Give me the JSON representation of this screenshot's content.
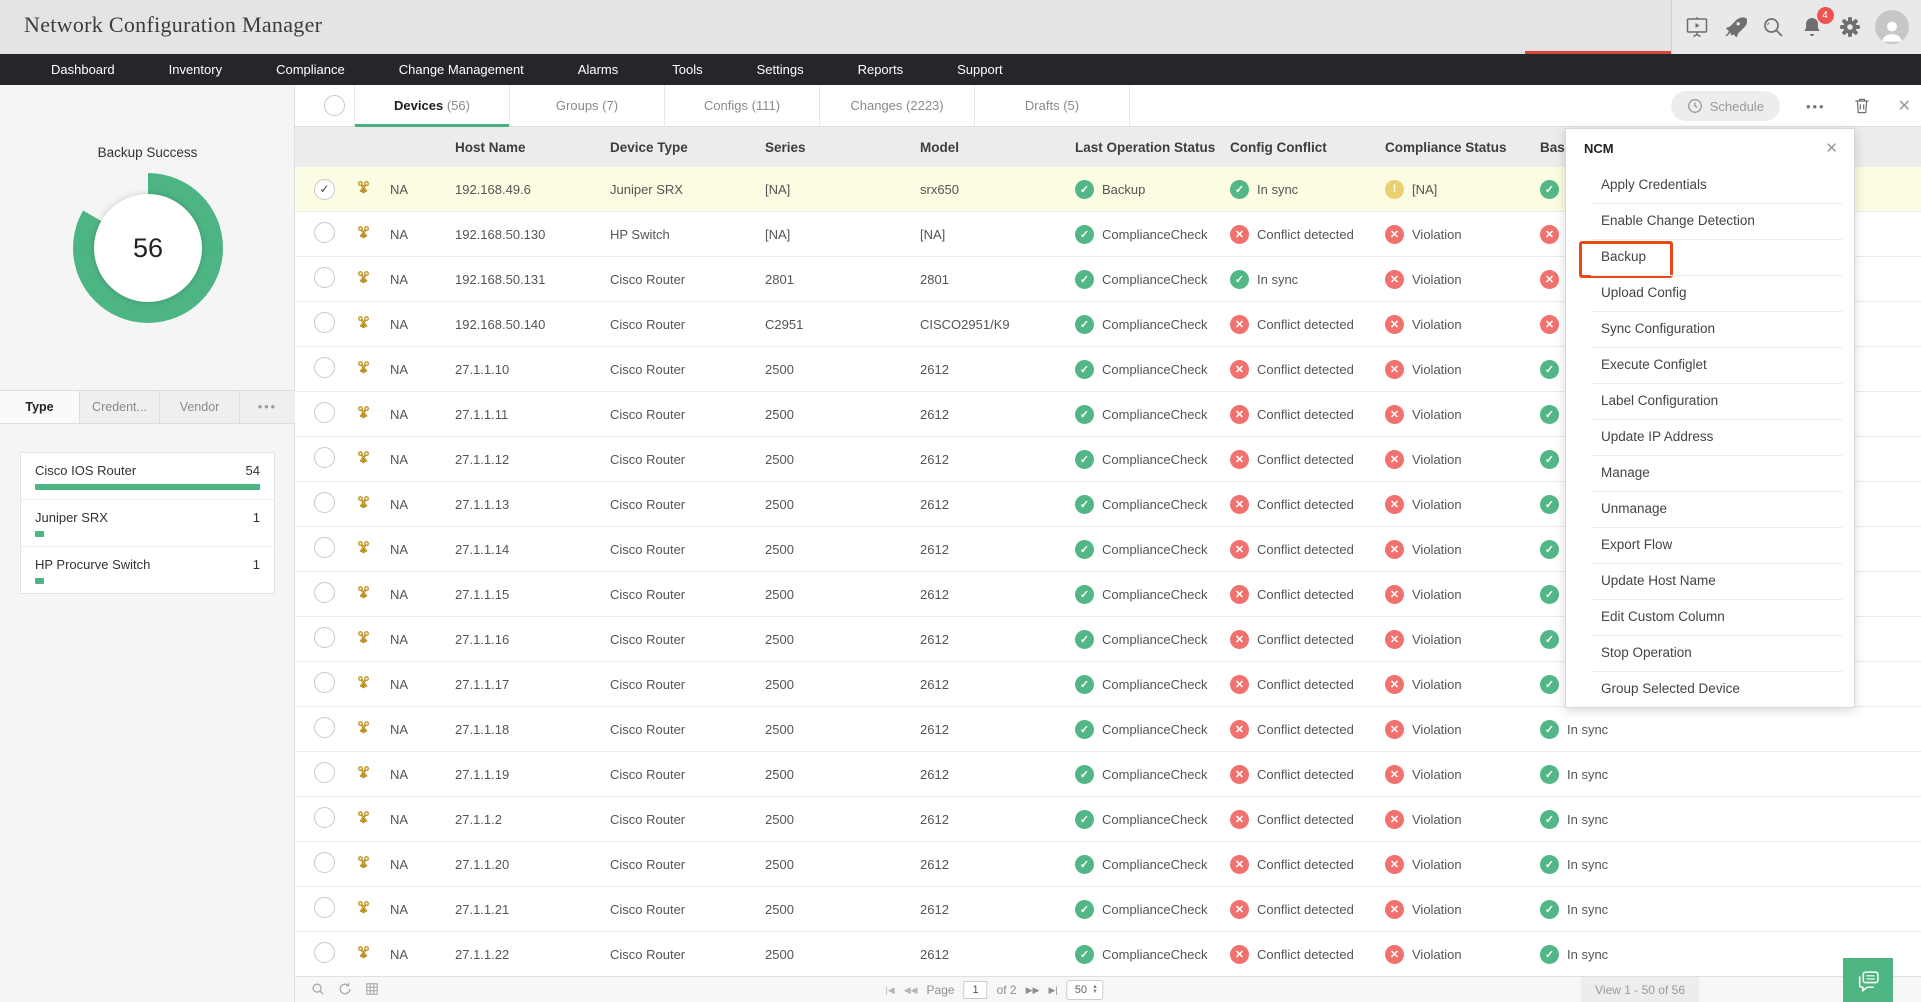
{
  "header": {
    "title": "Network Configuration Manager",
    "notification_count": "4"
  },
  "nav": {
    "items": [
      "Dashboard",
      "Inventory",
      "Compliance",
      "Change Management",
      "Alarms",
      "Tools",
      "Settings",
      "Reports",
      "Support"
    ]
  },
  "tabs": {
    "items": [
      {
        "label": "Devices",
        "count": "56",
        "active": true
      },
      {
        "label": "Groups",
        "count": "7",
        "active": false
      },
      {
        "label": "Configs",
        "count": "111",
        "active": false
      },
      {
        "label": "Changes",
        "count": "2223",
        "active": false
      },
      {
        "label": "Drafts",
        "count": "5",
        "active": false
      }
    ]
  },
  "toolbar": {
    "schedule_label": "Schedule",
    "more_icon": "•••",
    "close_icon": "✕"
  },
  "sidebar": {
    "chart": {
      "type": "donut",
      "title": "Backup Success",
      "value": "56",
      "color": "#4db583",
      "filled_degrees": 300
    },
    "filter_tabs": [
      {
        "label": "Type",
        "active": true
      },
      {
        "label": "Credent...",
        "active": false
      },
      {
        "label": "Vendor",
        "active": false
      }
    ],
    "more_icon": "•••",
    "device_types": [
      {
        "name": "Cisco IOS Router",
        "count": "54",
        "bar_pct": 100
      },
      {
        "name": "Juniper SRX",
        "count": "1",
        "bar_pct": 4
      },
      {
        "name": "HP Procurve Switch",
        "count": "1",
        "bar_pct": 4
      }
    ]
  },
  "table": {
    "columns": [
      "Host Name",
      "Device Type",
      "Series",
      "Model",
      "Last Operation Status",
      "Config Conflict",
      "Compliance Status",
      "Baseline"
    ],
    "rows": [
      {
        "selected": true,
        "na": "NA",
        "host": "192.168.49.6",
        "device_type": "Juniper SRX",
        "series": "[NA]",
        "model": "srx650",
        "last_operation": {
          "status": "ok",
          "label": "Backup"
        },
        "config_conflict": {
          "status": "ok",
          "label": "In sync"
        },
        "compliance": {
          "status": "warn",
          "label": "[NA]"
        },
        "baseline": {
          "status": "ok",
          "label": ""
        }
      },
      {
        "selected": false,
        "na": "NA",
        "host": "192.168.50.130",
        "device_type": "HP Switch",
        "series": "[NA]",
        "model": "[NA]",
        "last_operation": {
          "status": "ok",
          "label": "ComplianceCheck"
        },
        "config_conflict": {
          "status": "err",
          "label": "Conflict detected"
        },
        "compliance": {
          "status": "err",
          "label": "Violation"
        },
        "baseline": {
          "status": "err",
          "label": ""
        }
      },
      {
        "selected": false,
        "na": "NA",
        "host": "192.168.50.131",
        "device_type": "Cisco Router",
        "series": "2801",
        "model": "2801",
        "last_operation": {
          "status": "ok",
          "label": "ComplianceCheck"
        },
        "config_conflict": {
          "status": "ok",
          "label": "In sync"
        },
        "compliance": {
          "status": "err",
          "label": "Violation"
        },
        "baseline": {
          "status": "err",
          "label": ""
        }
      },
      {
        "selected": false,
        "na": "NA",
        "host": "192.168.50.140",
        "device_type": "Cisco Router",
        "series": "C2951",
        "model": "CISCO2951/K9",
        "last_operation": {
          "status": "ok",
          "label": "ComplianceCheck"
        },
        "config_conflict": {
          "status": "err",
          "label": "Conflict detected"
        },
        "compliance": {
          "status": "err",
          "label": "Violation"
        },
        "baseline": {
          "status": "err",
          "label": ""
        }
      },
      {
        "selected": false,
        "na": "NA",
        "host": "27.1.1.10",
        "device_type": "Cisco Router",
        "series": "2500",
        "model": "2612",
        "last_operation": {
          "status": "ok",
          "label": "ComplianceCheck"
        },
        "config_conflict": {
          "status": "err",
          "label": "Conflict detected"
        },
        "compliance": {
          "status": "err",
          "label": "Violation"
        },
        "baseline": {
          "status": "ok",
          "label": ""
        }
      },
      {
        "selected": false,
        "na": "NA",
        "host": "27.1.1.11",
        "device_type": "Cisco Router",
        "series": "2500",
        "model": "2612",
        "last_operation": {
          "status": "ok",
          "label": "ComplianceCheck"
        },
        "config_conflict": {
          "status": "err",
          "label": "Conflict detected"
        },
        "compliance": {
          "status": "err",
          "label": "Violation"
        },
        "baseline": {
          "status": "ok",
          "label": ""
        }
      },
      {
        "selected": false,
        "na": "NA",
        "host": "27.1.1.12",
        "device_type": "Cisco Router",
        "series": "2500",
        "model": "2612",
        "last_operation": {
          "status": "ok",
          "label": "ComplianceCheck"
        },
        "config_conflict": {
          "status": "err",
          "label": "Conflict detected"
        },
        "compliance": {
          "status": "err",
          "label": "Violation"
        },
        "baseline": {
          "status": "ok",
          "label": ""
        }
      },
      {
        "selected": false,
        "na": "NA",
        "host": "27.1.1.13",
        "device_type": "Cisco Router",
        "series": "2500",
        "model": "2612",
        "last_operation": {
          "status": "ok",
          "label": "ComplianceCheck"
        },
        "config_conflict": {
          "status": "err",
          "label": "Conflict detected"
        },
        "compliance": {
          "status": "err",
          "label": "Violation"
        },
        "baseline": {
          "status": "ok",
          "label": ""
        }
      },
      {
        "selected": false,
        "na": "NA",
        "host": "27.1.1.14",
        "device_type": "Cisco Router",
        "series": "2500",
        "model": "2612",
        "last_operation": {
          "status": "ok",
          "label": "ComplianceCheck"
        },
        "config_conflict": {
          "status": "err",
          "label": "Conflict detected"
        },
        "compliance": {
          "status": "err",
          "label": "Violation"
        },
        "baseline": {
          "status": "ok",
          "label": ""
        }
      },
      {
        "selected": false,
        "na": "NA",
        "host": "27.1.1.15",
        "device_type": "Cisco Router",
        "series": "2500",
        "model": "2612",
        "last_operation": {
          "status": "ok",
          "label": "ComplianceCheck"
        },
        "config_conflict": {
          "status": "err",
          "label": "Conflict detected"
        },
        "compliance": {
          "status": "err",
          "label": "Violation"
        },
        "baseline": {
          "status": "ok",
          "label": ""
        }
      },
      {
        "selected": false,
        "na": "NA",
        "host": "27.1.1.16",
        "device_type": "Cisco Router",
        "series": "2500",
        "model": "2612",
        "last_operation": {
          "status": "ok",
          "label": "ComplianceCheck"
        },
        "config_conflict": {
          "status": "err",
          "label": "Conflict detected"
        },
        "compliance": {
          "status": "err",
          "label": "Violation"
        },
        "baseline": {
          "status": "ok",
          "label": ""
        }
      },
      {
        "selected": false,
        "na": "NA",
        "host": "27.1.1.17",
        "device_type": "Cisco Router",
        "series": "2500",
        "model": "2612",
        "last_operation": {
          "status": "ok",
          "label": "ComplianceCheck"
        },
        "config_conflict": {
          "status": "err",
          "label": "Conflict detected"
        },
        "compliance": {
          "status": "err",
          "label": "Violation"
        },
        "baseline": {
          "status": "ok",
          "label": ""
        }
      },
      {
        "selected": false,
        "na": "NA",
        "host": "27.1.1.18",
        "device_type": "Cisco Router",
        "series": "2500",
        "model": "2612",
        "last_operation": {
          "status": "ok",
          "label": "ComplianceCheck"
        },
        "config_conflict": {
          "status": "err",
          "label": "Conflict detected"
        },
        "compliance": {
          "status": "err",
          "label": "Violation"
        },
        "baseline": {
          "status": "ok",
          "label": "In sync"
        }
      },
      {
        "selected": false,
        "na": "NA",
        "host": "27.1.1.19",
        "device_type": "Cisco Router",
        "series": "2500",
        "model": "2612",
        "last_operation": {
          "status": "ok",
          "label": "ComplianceCheck"
        },
        "config_conflict": {
          "status": "err",
          "label": "Conflict detected"
        },
        "compliance": {
          "status": "err",
          "label": "Violation"
        },
        "baseline": {
          "status": "ok",
          "label": "In sync"
        }
      },
      {
        "selected": false,
        "na": "NA",
        "host": "27.1.1.2",
        "device_type": "Cisco Router",
        "series": "2500",
        "model": "2612",
        "last_operation": {
          "status": "ok",
          "label": "ComplianceCheck"
        },
        "config_conflict": {
          "status": "err",
          "label": "Conflict detected"
        },
        "compliance": {
          "status": "err",
          "label": "Violation"
        },
        "baseline": {
          "status": "ok",
          "label": "In sync"
        }
      },
      {
        "selected": false,
        "na": "NA",
        "host": "27.1.1.20",
        "device_type": "Cisco Router",
        "series": "2500",
        "model": "2612",
        "last_operation": {
          "status": "ok",
          "label": "ComplianceCheck"
        },
        "config_conflict": {
          "status": "err",
          "label": "Conflict detected"
        },
        "compliance": {
          "status": "err",
          "label": "Violation"
        },
        "baseline": {
          "status": "ok",
          "label": "In sync"
        }
      },
      {
        "selected": false,
        "na": "NA",
        "host": "27.1.1.21",
        "device_type": "Cisco Router",
        "series": "2500",
        "model": "2612",
        "last_operation": {
          "status": "ok",
          "label": "ComplianceCheck"
        },
        "config_conflict": {
          "status": "err",
          "label": "Conflict detected"
        },
        "compliance": {
          "status": "err",
          "label": "Violation"
        },
        "baseline": {
          "status": "ok",
          "label": "In sync"
        }
      },
      {
        "selected": false,
        "na": "NA",
        "host": "27.1.1.22",
        "device_type": "Cisco Router",
        "series": "2500",
        "model": "2612",
        "last_operation": {
          "status": "ok",
          "label": "ComplianceCheck"
        },
        "config_conflict": {
          "status": "err",
          "label": "Conflict detected"
        },
        "compliance": {
          "status": "err",
          "label": "Violation"
        },
        "baseline": {
          "status": "ok",
          "label": "In sync"
        }
      }
    ]
  },
  "menu": {
    "title": "NCM",
    "close_icon": "✕",
    "highlighted": "Backup",
    "items": [
      "Apply Credentials",
      "Enable Change Detection",
      "Backup",
      "Upload Config",
      "Sync Configuration",
      "Execute Configlet",
      "Label Configuration",
      "Update IP Address",
      "Manage",
      "Unmanage",
      "Export Flow",
      "Update Host Name",
      "Edit Custom Column",
      "Stop Operation",
      "Group Selected Device"
    ],
    "icons": {
      "ok": "✓",
      "err": "✕",
      "warn": "!"
    }
  },
  "footer": {
    "page_label": "Page",
    "page_value": "1",
    "of_label": "of 2",
    "page_size": "50",
    "first_icon": "|◀",
    "prev_icon": "◀◀",
    "next_icon": "▶▶",
    "last_icon": "▶|",
    "view_label": "View 1 - 50 of 56"
  }
}
